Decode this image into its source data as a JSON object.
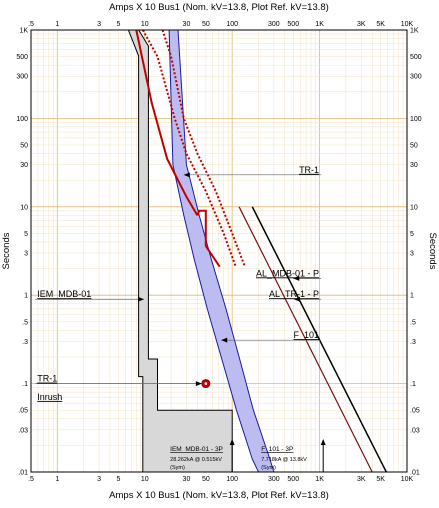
{
  "chart_data": {
    "type": "line",
    "title_top": "Amps  X  10   Bus1 (Nom. kV=13.8, Plot Ref. kV=13.8)",
    "title_bottom": "Amps  X  10   Bus1 (Nom. kV=13.8, Plot Ref. kV=13.8)",
    "ylabel_left": "Seconds",
    "ylabel_right": "Seconds",
    "x_scale": "log",
    "y_scale": "log",
    "xlim": [
      0.5,
      10000
    ],
    "ylim": [
      0.01,
      1000
    ],
    "grid": true,
    "x_ticks": [
      {
        "v": 0.5,
        "label": ".5"
      },
      {
        "v": 1,
        "label": "1"
      },
      {
        "v": 3,
        "label": "3"
      },
      {
        "v": 5,
        "label": "5"
      },
      {
        "v": 10,
        "label": "10"
      },
      {
        "v": 30,
        "label": "30"
      },
      {
        "v": 50,
        "label": "50"
      },
      {
        "v": 100,
        "label": "100"
      },
      {
        "v": 300,
        "label": "300"
      },
      {
        "v": 500,
        "label": "500"
      },
      {
        "v": 1000,
        "label": "1K"
      },
      {
        "v": 3000,
        "label": "3K"
      },
      {
        "v": 5000,
        "label": "5K"
      },
      {
        "v": 10000,
        "label": "10K"
      }
    ],
    "y_ticks": [
      {
        "v": 1000,
        "label": "1K"
      },
      {
        "v": 500,
        "label": "500"
      },
      {
        "v": 300,
        "label": "300"
      },
      {
        "v": 100,
        "label": "100"
      },
      {
        "v": 50,
        "label": "50"
      },
      {
        "v": 30,
        "label": "30"
      },
      {
        "v": 10,
        "label": "10"
      },
      {
        "v": 5,
        "label": "5"
      },
      {
        "v": 3,
        "label": "3"
      },
      {
        "v": 1,
        "label": "1"
      },
      {
        "v": 0.5,
        "label": ".5"
      },
      {
        "v": 0.3,
        "label": ".3"
      },
      {
        "v": 0.1,
        "label": ".1"
      },
      {
        "v": 0.05,
        "label": ".05"
      },
      {
        "v": 0.03,
        "label": ".03"
      },
      {
        "v": 0.01,
        "label": ".01"
      }
    ],
    "series": [
      {
        "id": "iem-band",
        "kind": "band",
        "fill": "#d8d8d8",
        "stroke": "#000000",
        "points": [
          [
            6.5,
            1000
          ],
          [
            8.5,
            1000
          ],
          [
            11,
            660
          ],
          [
            11,
            0.19
          ],
          [
            14,
            0.19
          ],
          [
            14,
            0.05
          ],
          [
            100,
            0.05
          ],
          [
            100,
            0.01
          ],
          [
            9.5,
            0.01
          ],
          [
            9.5,
            0.12
          ],
          [
            8.5,
            0.12
          ],
          [
            8.5,
            510
          ],
          [
            6.5,
            1000
          ]
        ]
      },
      {
        "id": "f101-band",
        "kind": "band",
        "fill": "#bcbcf0",
        "stroke": "#1a1aa0",
        "points": [
          [
            19,
            1000
          ],
          [
            24,
            1000
          ],
          [
            30,
            30
          ],
          [
            42,
            8
          ],
          [
            58,
            2.5
          ],
          [
            85,
            0.7
          ],
          [
            120,
            0.2
          ],
          [
            175,
            0.05
          ],
          [
            270,
            0.014
          ],
          [
            300,
            0.01
          ],
          [
            200,
            0.01
          ],
          [
            170,
            0.014
          ],
          [
            112,
            0.05
          ],
          [
            75,
            0.2
          ],
          [
            52,
            0.7
          ],
          [
            37,
            2.5
          ],
          [
            28,
            8
          ],
          [
            21,
            30
          ],
          [
            19,
            1000
          ]
        ]
      },
      {
        "id": "tr1-damage",
        "kind": "line",
        "color": "#c00000",
        "width": 2,
        "points": [
          [
            8,
            1000
          ],
          [
            12,
            150
          ],
          [
            18,
            35
          ],
          [
            30,
            13
          ],
          [
            40,
            8
          ]
        ]
      },
      {
        "id": "tr1-step",
        "kind": "line",
        "color": "#c00000",
        "width": 2,
        "points": [
          [
            40,
            8
          ],
          [
            42,
            9
          ],
          [
            50,
            9
          ],
          [
            50,
            3.6
          ],
          [
            72,
            2.1
          ]
        ]
      },
      {
        "id": "tr1-dotted-a",
        "kind": "line",
        "color": "#c00000",
        "width": 2,
        "dash": "2,2",
        "points": [
          [
            9.5,
            1000
          ],
          [
            14,
            500
          ],
          [
            22,
            100
          ],
          [
            30,
            40
          ],
          [
            50,
            15
          ],
          [
            80,
            5
          ],
          [
            110,
            2.1
          ]
        ]
      },
      {
        "id": "tr1-dotted-b",
        "kind": "line",
        "color": "#c00000",
        "width": 2,
        "dash": "2,2",
        "points": [
          [
            16,
            1000
          ],
          [
            20,
            500
          ],
          [
            28,
            100
          ],
          [
            40,
            40
          ],
          [
            65,
            15
          ],
          [
            100,
            5
          ],
          [
            140,
            2.1
          ]
        ]
      },
      {
        "id": "al-tr1-p",
        "kind": "line",
        "color": "#7a1010",
        "width": 1.2,
        "points": [
          [
            120,
            10
          ],
          [
            4000,
            0.01
          ]
        ]
      },
      {
        "id": "al-mdb01-p",
        "kind": "line",
        "color": "#000000",
        "width": 1.5,
        "points": [
          [
            170,
            10
          ],
          [
            5800,
            0.01
          ]
        ]
      },
      {
        "id": "tr1-inrush",
        "kind": "point",
        "color": "#cc0000",
        "points": [
          [
            50,
            0.1
          ]
        ]
      }
    ],
    "labels": [
      {
        "text": "TR-1",
        "ax": [
          28,
          23
        ],
        "lx": [
          1040,
          23
        ],
        "side": "right"
      },
      {
        "text": "AL_MDB-01 - P",
        "ax": [
          500,
          1.55
        ],
        "lx": [
          1040,
          1.55
        ],
        "side": "right"
      },
      {
        "text": "AL_TR-1 - P",
        "ax": [
          510,
          0.9
        ],
        "lx": [
          1040,
          0.9
        ],
        "side": "right"
      },
      {
        "text": "F_101",
        "ax": [
          75,
          0.31
        ],
        "lx": [
          1040,
          0.31
        ],
        "side": "right"
      },
      {
        "text": "IEM_MDB-01",
        "ax": [
          9.8,
          0.9
        ],
        "lx": [
          0.56,
          0.9
        ],
        "side": "left"
      },
      {
        "text": "TR-1",
        "ax": [
          45,
          0.1
        ],
        "lx": [
          0.56,
          0.1
        ],
        "side": "left"
      },
      {
        "text": "Inrush",
        "ax": null,
        "lx": [
          0.56,
          0.062
        ],
        "side": "left"
      }
    ],
    "fault_annotations": [
      {
        "title": "IEM_MDB-01 - 3P",
        "lines": [
          "28.262kA @ 0.515kV",
          "(Sym)"
        ],
        "x": 100
      },
      {
        "title": "F_101 - 3P",
        "lines": [
          "7.718kA @ 13.8kV",
          "(Sym)"
        ],
        "x": 1100
      }
    ]
  }
}
